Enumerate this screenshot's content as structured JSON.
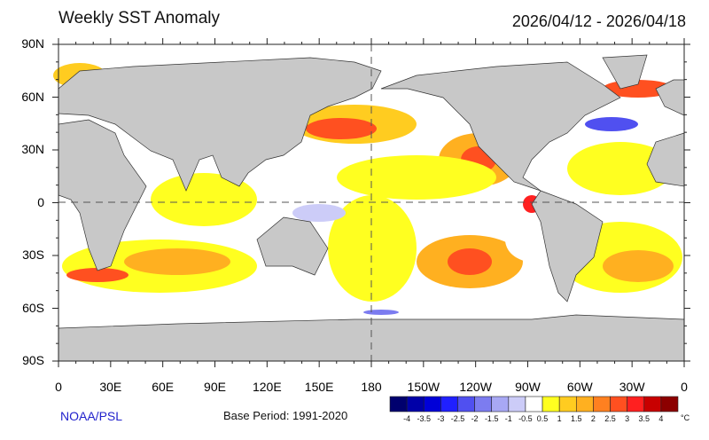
{
  "title": "Weekly SST Anomaly",
  "date_range": "2026/04/12 - 2026/04/18",
  "lat_labels": [
    "90N",
    "60N",
    "30N",
    "0",
    "30S",
    "60S",
    "90S"
  ],
  "lon_labels": [
    "0",
    "30E",
    "60E",
    "90E",
    "120E",
    "150E",
    "180",
    "150W",
    "120W",
    "90W",
    "60W",
    "30W",
    "0"
  ],
  "source": "NOAA/PSL",
  "base_period": "Base Period: 1991-2020",
  "colorbar": {
    "labels": [
      "-4",
      "-3.5",
      "-3",
      "-2.5",
      "-2",
      "-1.5",
      "-1",
      "-0.5",
      "0.5",
      "1",
      "1.5",
      "2",
      "2.5",
      "3",
      "3.5",
      "4"
    ],
    "unit": "°C",
    "colors": [
      "#00006e",
      "#0000a8",
      "#0000d8",
      "#2020ff",
      "#5050f0",
      "#7c7cf0",
      "#a8a8f4",
      "#ccccf8",
      "#ffffff",
      "#ffff20",
      "#ffcc20",
      "#ffb020",
      "#ff8020",
      "#ff5020",
      "#ff2020",
      "#c80000",
      "#8c0000"
    ]
  },
  "land_color": "#c8c8c8"
}
